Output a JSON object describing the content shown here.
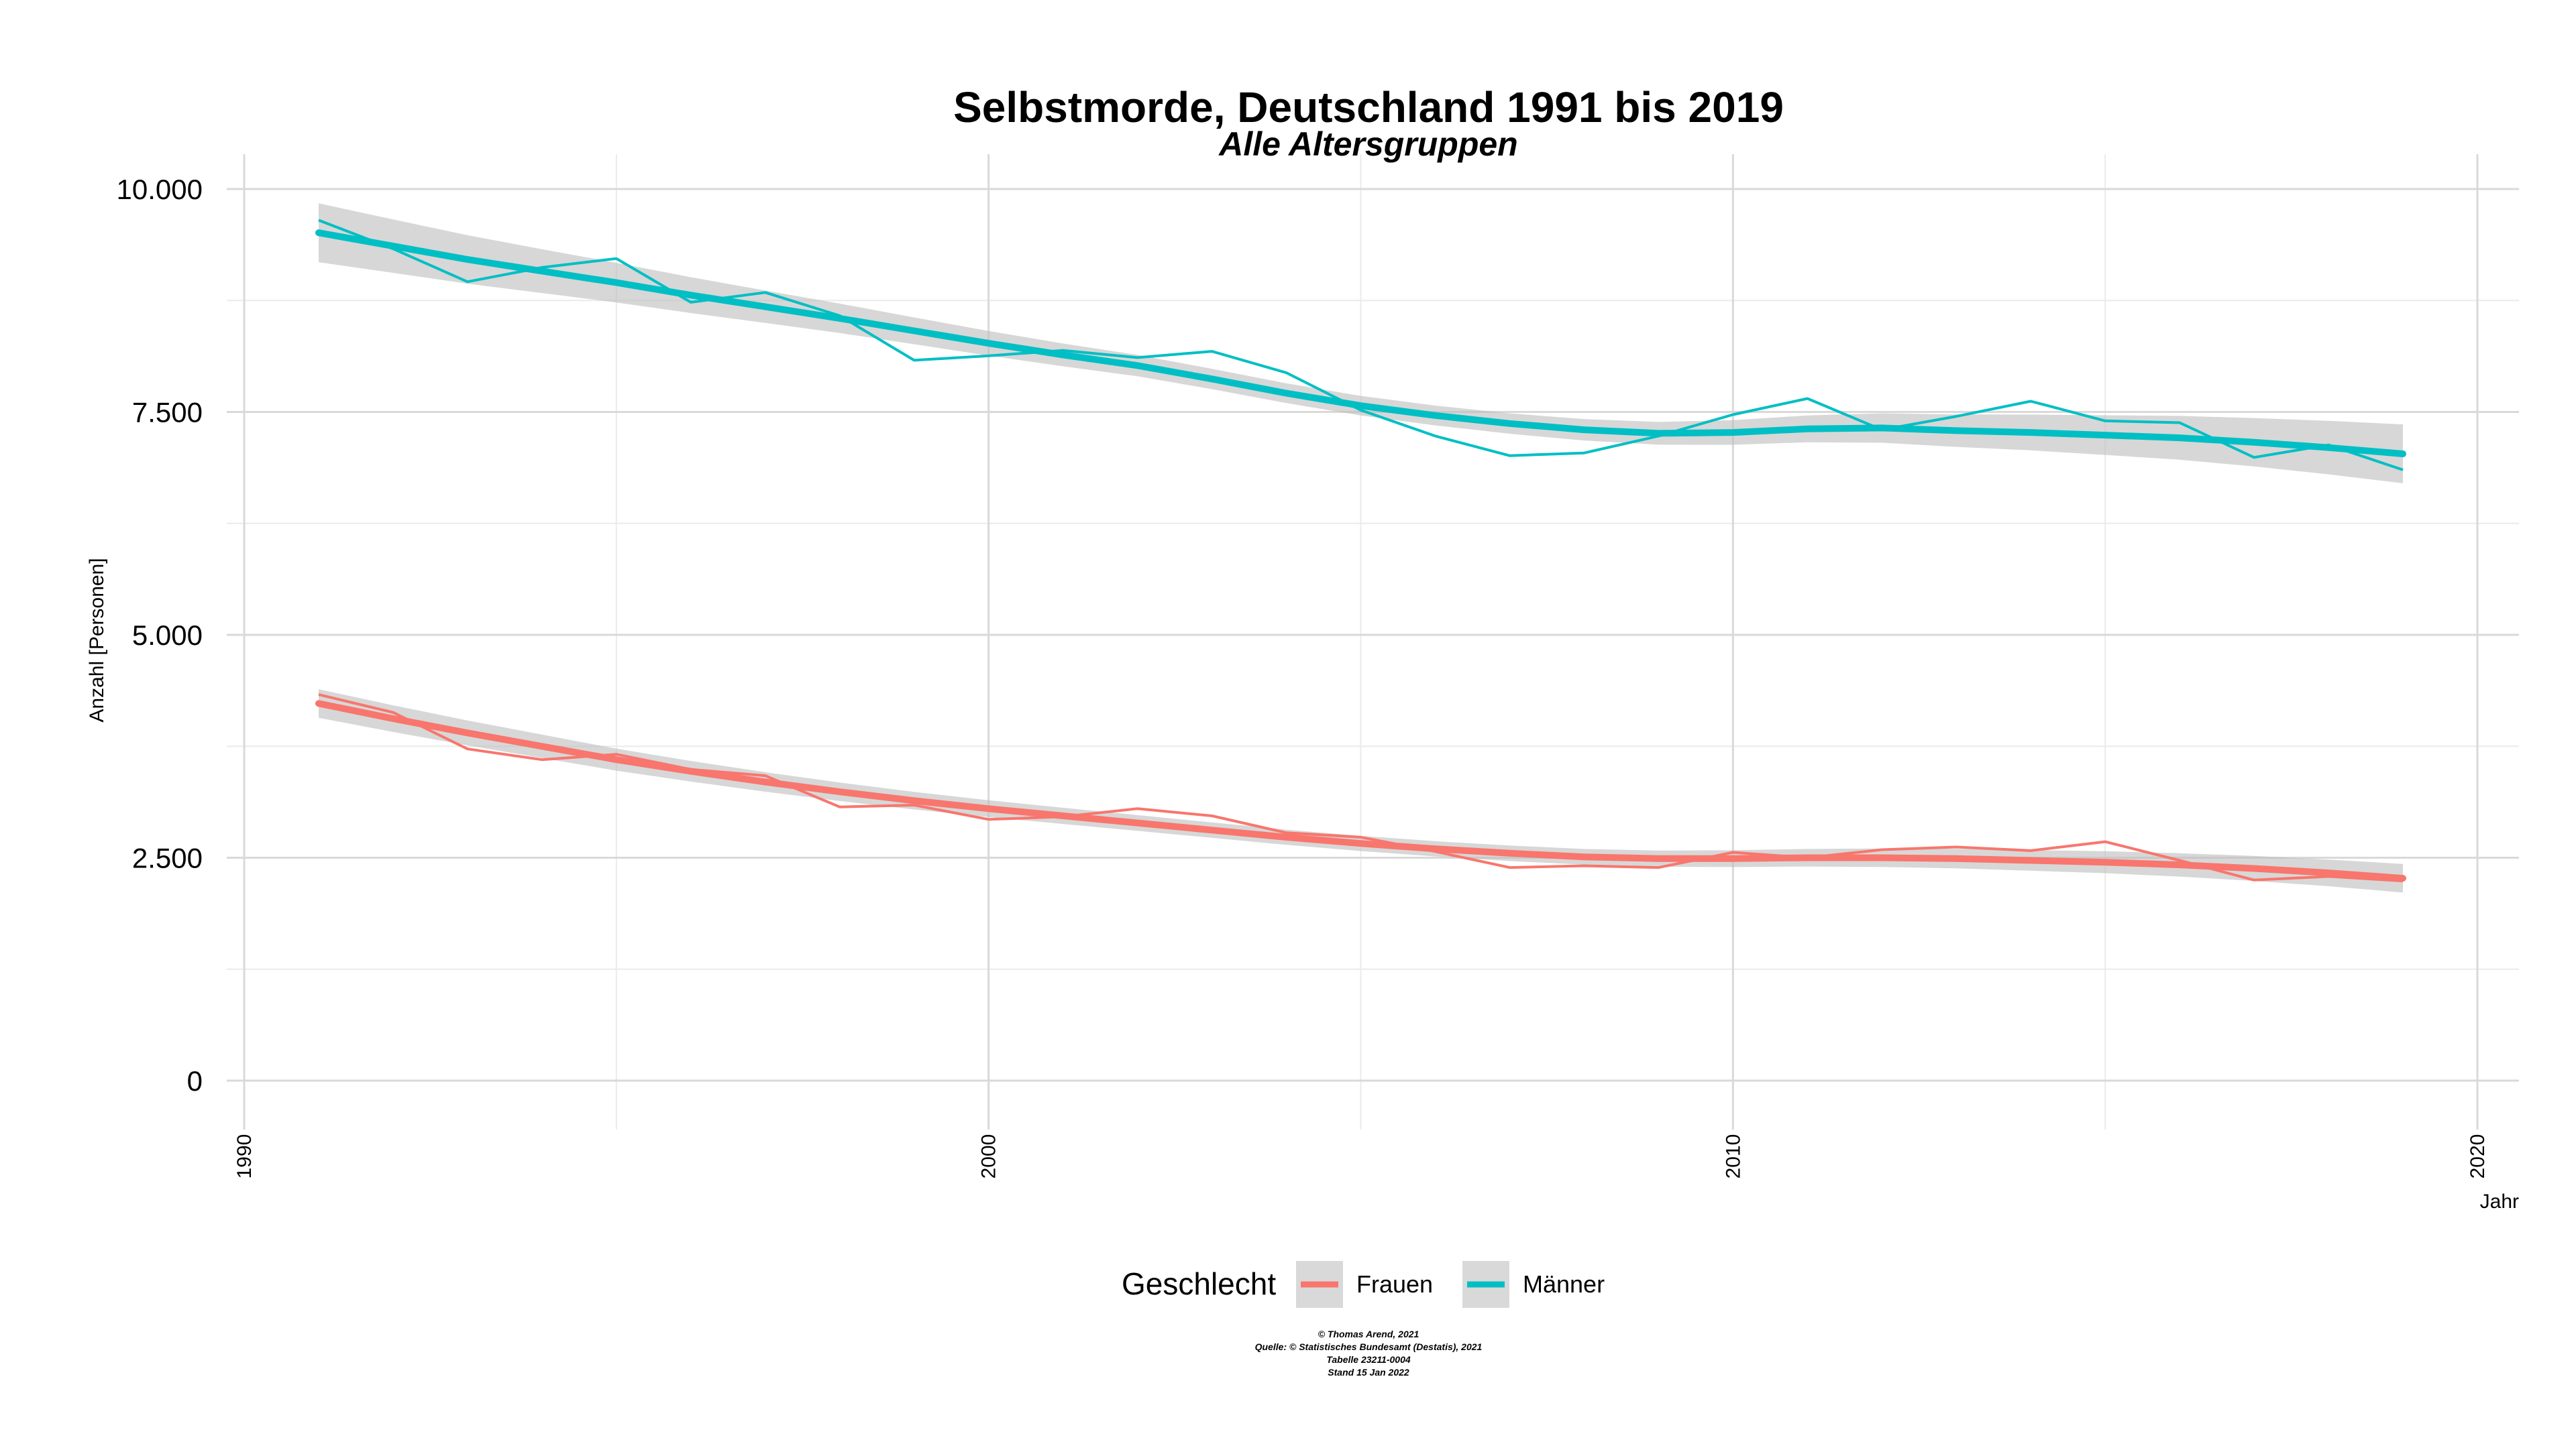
{
  "chart_data": {
    "type": "line",
    "title": "Selbstmorde, Deutschland  1991 bis 2019",
    "subtitle": "Alle Altersgruppen",
    "xlabel": "Jahr",
    "ylabel": "Anzahl [Personen]",
    "xlim": [
      1990,
      2020
    ],
    "ylim": [
      0,
      10000
    ],
    "x_ticks": [
      "1990",
      "2000",
      "2010",
      "2020"
    ],
    "y_ticks": [
      "0",
      "2.500",
      "5.000",
      "7.500",
      "10.000"
    ],
    "y_tick_values": [
      0,
      2500,
      5000,
      7500,
      10000
    ],
    "grid": true,
    "legend_position": "bottom",
    "legend_title": "Geschlecht",
    "x": [
      1991,
      1992,
      1993,
      1994,
      1995,
      1996,
      1997,
      1998,
      1999,
      2000,
      2001,
      2002,
      2003,
      2004,
      2005,
      2006,
      2007,
      2008,
      2009,
      2010,
      2011,
      2012,
      2013,
      2014,
      2015,
      2016,
      2017,
      2018,
      2019
    ],
    "series": [
      {
        "name": "Frauen",
        "color": "#f8766d",
        "values": [
          4330,
          4130,
          3720,
          3600,
          3660,
          3490,
          3420,
          3070,
          3090,
          2930,
          2960,
          3050,
          2970,
          2780,
          2730,
          2570,
          2390,
          2410,
          2390,
          2560,
          2500,
          2590,
          2620,
          2580,
          2680,
          2470,
          2250,
          2290,
          2240
        ],
        "trend": [
          4230,
          4060,
          3900,
          3750,
          3600,
          3470,
          3350,
          3240,
          3140,
          3050,
          2970,
          2890,
          2810,
          2730,
          2660,
          2600,
          2550,
          2510,
          2490,
          2490,
          2500,
          2500,
          2490,
          2470,
          2450,
          2420,
          2380,
          2330,
          2270
        ]
      },
      {
        "name": "Männer",
        "color": "#00bfc4",
        "values": [
          9650,
          9330,
          8960,
          9120,
          9220,
          8730,
          8840,
          8580,
          8080,
          8130,
          8190,
          8110,
          8180,
          7940,
          7520,
          7230,
          7010,
          7040,
          7230,
          7470,
          7650,
          7300,
          7450,
          7620,
          7400,
          7380,
          6990,
          7130,
          6850
        ],
        "trend": [
          9510,
          9360,
          9210,
          9080,
          8950,
          8810,
          8680,
          8550,
          8410,
          8270,
          8140,
          8020,
          7870,
          7710,
          7570,
          7460,
          7370,
          7300,
          7260,
          7270,
          7310,
          7320,
          7290,
          7270,
          7240,
          7210,
          7160,
          7100,
          7030
        ]
      }
    ],
    "caption": [
      "© Thomas Arend, 2021",
      "Quelle: © Statistisches Bundesamt (Destatis), 2021",
      "Tabelle 23211-0004",
      "Stand 15 Jan 2022"
    ]
  }
}
